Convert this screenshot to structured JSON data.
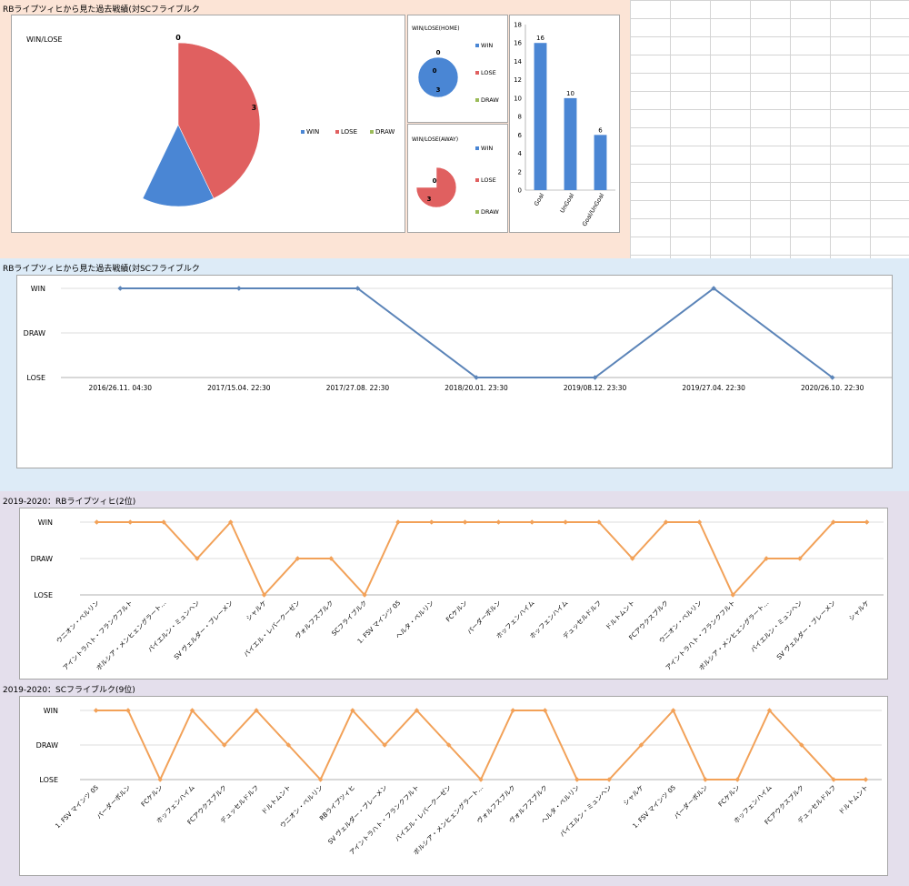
{
  "sections": {
    "s1_title": "RBライプツィヒから見た過去戦績(対SCフライブルク",
    "s2_title": "RBライプツィヒから見た過去戦績(対SCフライブルク",
    "s3_title": "2019-2020：RBライプツィヒ(2位)",
    "s4_title": "2019-2020：SCフライブルク(9位)"
  },
  "colors": {
    "win": "#4a86d4",
    "lose": "#e06060",
    "draw": "#9bbb59",
    "bar": "#4a86d4",
    "line_blue": "#5b84b8",
    "line_orange": "#f2a158",
    "gridline": "#d0d0d0"
  },
  "chart_data": [
    {
      "id": "pie-total",
      "type": "pie",
      "title": "WIN/LOSE",
      "labels": [
        "WIN",
        "LOSE",
        "DRAW"
      ],
      "values": [
        4,
        3,
        0
      ],
      "value_labels": [
        "4",
        "3",
        "0"
      ],
      "legend": "right"
    },
    {
      "id": "pie-home",
      "type": "pie",
      "title": "WIN/LOSE(HOME)",
      "labels": [
        "WIN",
        "LOSE",
        "DRAW"
      ],
      "values": [
        3,
        0,
        0
      ],
      "value_labels": [
        "3",
        "0",
        "0"
      ],
      "legend": "right"
    },
    {
      "id": "pie-away",
      "type": "pie",
      "title": "WIN/LOSE(AWAY)",
      "labels": [
        "WIN",
        "LOSE",
        "DRAW"
      ],
      "values": [
        1,
        3,
        0
      ],
      "value_labels": [
        "1",
        "3",
        "0"
      ],
      "legend": "right"
    },
    {
      "id": "bar-goals",
      "type": "bar",
      "categories": [
        "Goal",
        "UnGoal",
        "Goal/UnGoal"
      ],
      "values": [
        16,
        10,
        6
      ],
      "value_labels": [
        "16",
        "10",
        "6"
      ],
      "ylim": [
        0,
        18
      ],
      "yticks": [
        0,
        2,
        4,
        6,
        8,
        10,
        12,
        14,
        16,
        18
      ],
      "ytick_labels": [
        "0",
        "2",
        "4",
        "6",
        "8",
        "10",
        "12",
        "14",
        "16",
        "18"
      ]
    },
    {
      "id": "line-history",
      "type": "line",
      "y_categories": [
        "LOSE",
        "DRAW",
        "WIN"
      ],
      "categories": [
        "2016/26.11. 04:30",
        "2017/15.04. 22:30",
        "2017/27.08. 22:30",
        "2018/20.01. 23:30",
        "2019/08.12. 23:30",
        "2019/27.04. 22:30",
        "2020/26.10. 22:30"
      ],
      "results": [
        "WIN",
        "WIN",
        "WIN",
        "LOSE",
        "LOSE",
        "WIN",
        "LOSE"
      ],
      "grid": true
    },
    {
      "id": "line-leipzig",
      "type": "line",
      "y_categories": [
        "LOSE",
        "DRAW",
        "WIN"
      ],
      "categories": [
        "ウニオン・ベルリン",
        "アイントラハト・フランクフルト",
        "ボルシア・メンヒェングラート…",
        "バイエルン・ミュンヘン",
        "SV ヴェルダー・ブレーメン",
        "シャルケ",
        "バイエル・レバークーゼン",
        "ヴォルフスブルク",
        "SCフライブルク",
        "1. FSV マインツ 05",
        "ヘルタ・ベルリン",
        "FCケルン",
        "パーダーボルン",
        "ホッフェンハイム",
        "ホッフェンハイム",
        "デュッセルドルフ",
        "ドルトムント",
        "FCアウクスブルク",
        "ウニオン・ベルリン",
        "アイントラハト・フランクフルト",
        "ボルシア・メンヒェングラート…",
        "バイエルン・ミュンヘン",
        "SV ヴェルダー・ブレーメン",
        "シャルケ"
      ],
      "results": [
        "WIN",
        "WIN",
        "WIN",
        "DRAW",
        "WIN",
        "LOSE",
        "DRAW",
        "DRAW",
        "LOSE",
        "WIN",
        "WIN",
        "WIN",
        "WIN",
        "WIN",
        "WIN",
        "WIN",
        "DRAW",
        "WIN",
        "WIN",
        "LOSE",
        "DRAW",
        "DRAW",
        "WIN",
        "WIN"
      ],
      "grid": true
    },
    {
      "id": "line-freiburg",
      "type": "line",
      "y_categories": [
        "LOSE",
        "DRAW",
        "WIN"
      ],
      "categories": [
        "1. FSV マインツ 05",
        "パーダーボルン",
        "FCケルン",
        "ホッフェンハイム",
        "FCアウクスブルク",
        "デュッセルドルフ",
        "ドルトムント",
        "ウニオン・ベルリン",
        "RBライプツィヒ",
        "SV ヴェルダー・ブレーメン",
        "アイントラハト・フランクフルト",
        "バイエル・レバークーゼン",
        "ボルシア・メンヒェングラート…",
        "ヴォルフスブルク",
        "ヴォルフスブルク",
        "ヘルタ・ベルリン",
        "バイエルン・ミュンヘン",
        "シャルケ",
        "1. FSV マインツ 05",
        "パーダーボルン",
        "FCケルン",
        "ホッフェンハイム",
        "FCアウクスブルク",
        "デュッセルドルフ",
        "ドルトムント"
      ],
      "results": [
        "WIN",
        "WIN",
        "LOSE",
        "WIN",
        "DRAW",
        "WIN",
        "DRAW",
        "LOSE",
        "WIN",
        "DRAW",
        "WIN",
        "DRAW",
        "LOSE",
        "WIN",
        "WIN",
        "LOSE",
        "LOSE",
        "DRAW",
        "WIN",
        "LOSE",
        "LOSE",
        "WIN",
        "DRAW",
        "LOSE",
        "LOSE"
      ],
      "grid": true
    }
  ]
}
